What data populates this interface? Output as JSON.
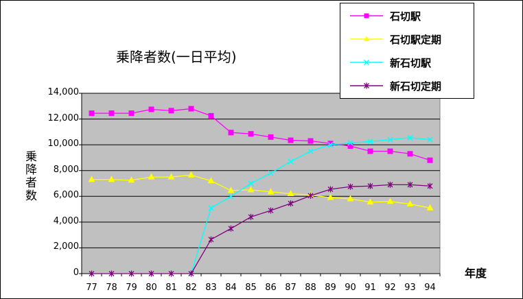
{
  "chart_data": {
    "type": "line",
    "title": "乗降者数(一日平均)",
    "xlabel": "年度",
    "ylabel": "乗降者数",
    "categories": [
      "77",
      "78",
      "79",
      "80",
      "81",
      "82",
      "83",
      "84",
      "85",
      "86",
      "87",
      "88",
      "89",
      "90",
      "91",
      "92",
      "93",
      "94"
    ],
    "ylim": [
      0,
      14000
    ],
    "yticks": [
      "0",
      "2,000",
      "4,000",
      "6,000",
      "8,000",
      "10,000",
      "12,000",
      "14,000"
    ],
    "grid": true,
    "legend_position": "top-right",
    "series": [
      {
        "name": "石切駅",
        "color": "#ff00ff",
        "marker": "square",
        "values": [
          12450,
          12450,
          12450,
          12750,
          12650,
          12800,
          12250,
          10950,
          10850,
          10600,
          10350,
          10300,
          10100,
          9900,
          9500,
          9500,
          9300,
          8800
        ]
      },
      {
        "name": "石切駅定期",
        "color": "#ffff00",
        "marker": "triangle",
        "values": [
          7300,
          7300,
          7250,
          7500,
          7500,
          7650,
          7200,
          6450,
          6500,
          6350,
          6200,
          6100,
          5900,
          5800,
          5550,
          5600,
          5400,
          5100
        ]
      },
      {
        "name": "新石切駅",
        "color": "#00ffff",
        "marker": "x",
        "values": [
          null,
          null,
          null,
          null,
          null,
          0,
          5100,
          6000,
          7000,
          7800,
          8700,
          9500,
          10000,
          10150,
          10250,
          10400,
          10550,
          10400
        ]
      },
      {
        "name": "新石切定期",
        "color": "#800080",
        "marker": "star",
        "values": [
          0,
          0,
          0,
          0,
          0,
          0,
          2650,
          3500,
          4400,
          4900,
          5450,
          6050,
          6550,
          6750,
          6800,
          6900,
          6900,
          6800
        ]
      }
    ]
  }
}
